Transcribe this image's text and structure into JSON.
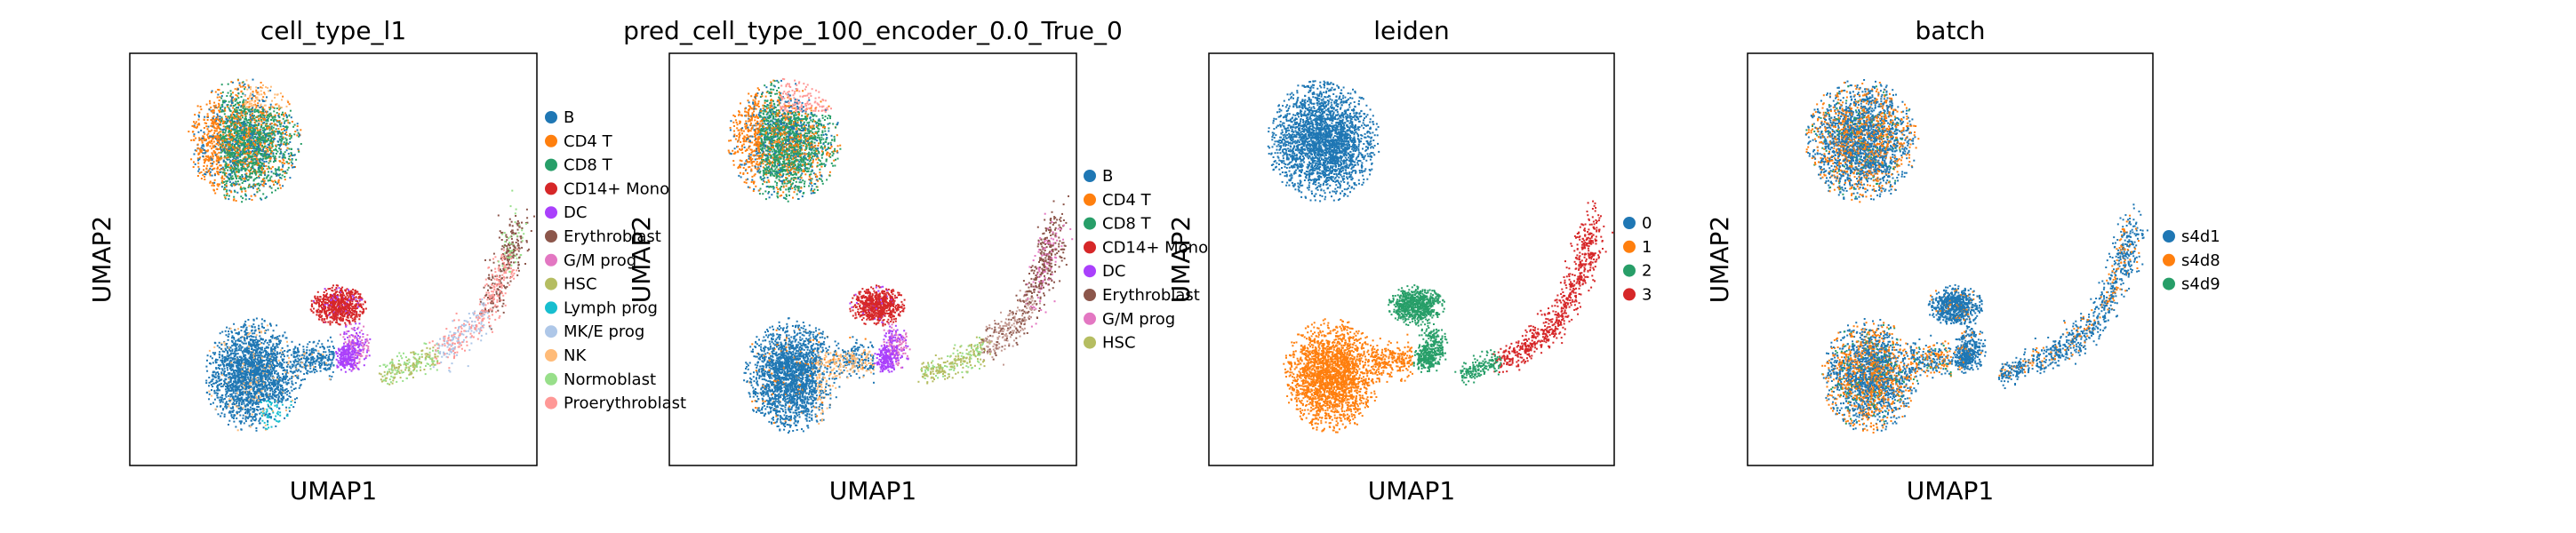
{
  "chart_data": [
    {
      "type": "scatter",
      "title": "cell_type_l1",
      "xlabel": "UMAP1",
      "ylabel": "UMAP2",
      "grid": false,
      "legend_placement": "right",
      "legend": [
        {
          "label": "B",
          "color": "#1f77b4"
        },
        {
          "label": "CD4 T",
          "color": "#ff7f0e"
        },
        {
          "label": "CD8 T",
          "color": "#279e68"
        },
        {
          "label": "CD14+ Mono",
          "color": "#d62728"
        },
        {
          "label": "DC",
          "color": "#aa40fc"
        },
        {
          "label": "Erythroblast",
          "color": "#8c564b"
        },
        {
          "label": "G/M prog",
          "color": "#e377c2"
        },
        {
          "label": "HSC",
          "color": "#b5bd61"
        },
        {
          "label": "Lymph prog",
          "color": "#17becf"
        },
        {
          "label": "MK/E prog",
          "color": "#aec7e8"
        },
        {
          "label": "NK",
          "color": "#ffbb78"
        },
        {
          "label": "Normoblast",
          "color": "#98df8a"
        },
        {
          "label": "Proerythroblast",
          "color": "#ff9896"
        }
      ]
    },
    {
      "type": "scatter",
      "title": "pred_cell_type_100_encoder_0.0_True_0",
      "xlabel": "UMAP1",
      "ylabel": "UMAP2",
      "grid": false,
      "legend_placement": "right",
      "legend": [
        {
          "label": "B",
          "color": "#1f77b4"
        },
        {
          "label": "CD4 T",
          "color": "#ff7f0e"
        },
        {
          "label": "CD8 T",
          "color": "#279e68"
        },
        {
          "label": "CD14+ Mono",
          "color": "#d62728"
        },
        {
          "label": "DC",
          "color": "#aa40fc"
        },
        {
          "label": "Erythroblast",
          "color": "#8c564b"
        },
        {
          "label": "G/M prog",
          "color": "#e377c2"
        },
        {
          "label": "HSC",
          "color": "#b5bd61"
        }
      ]
    },
    {
      "type": "scatter",
      "title": "leiden",
      "xlabel": "UMAP1",
      "ylabel": "UMAP2",
      "grid": false,
      "legend_placement": "right",
      "legend": [
        {
          "label": "0",
          "color": "#1f77b4"
        },
        {
          "label": "1",
          "color": "#ff7f0e"
        },
        {
          "label": "2",
          "color": "#279e68"
        },
        {
          "label": "3",
          "color": "#d62728"
        }
      ]
    },
    {
      "type": "scatter",
      "title": "batch",
      "xlabel": "UMAP1",
      "ylabel": "UMAP2",
      "grid": false,
      "legend_placement": "right",
      "legend": [
        {
          "label": "s4d1",
          "color": "#1f77b4"
        },
        {
          "label": "s4d8",
          "color": "#ff7f0e"
        },
        {
          "label": "s4d9",
          "color": "#279e68"
        }
      ]
    }
  ]
}
